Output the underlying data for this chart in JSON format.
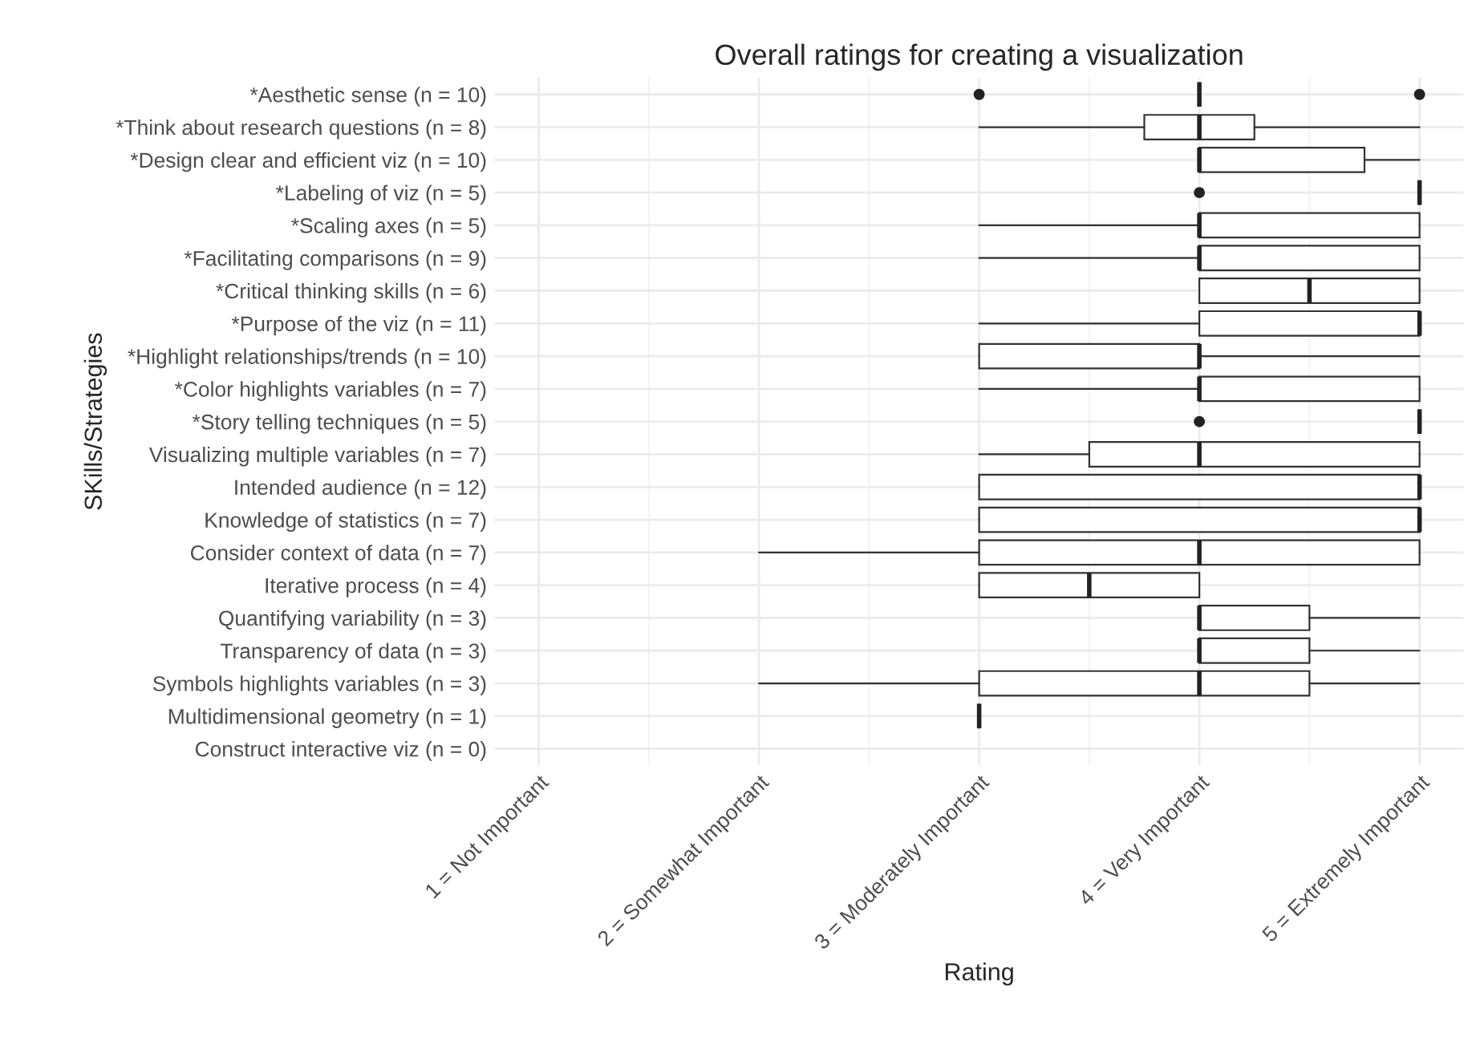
{
  "chart_data": {
    "type": "box",
    "title": "Overall ratings for creating a visualization",
    "xlabel": "Rating",
    "ylabel": "SKills/Strategies",
    "orientation": "horizontal",
    "categories": [
      "*Aesthetic sense (n = 10)",
      "*Think about research questions (n = 8)",
      "*Design clear and efficient viz (n = 10)",
      "*Labeling of viz (n = 5)",
      "*Scaling axes (n = 5)",
      "*Facilitating comparisons (n = 9)",
      "*Critical thinking skills (n = 6)",
      "*Purpose of the viz (n = 11)",
      "*Highlight relationships/trends (n = 10)",
      "*Color highlights variables (n = 7)",
      "*Story telling techniques (n = 5)",
      "Visualizing multiple variables (n = 7)",
      "Intended audience (n = 12)",
      "Knowledge of statistics (n = 7)",
      "Consider context of data (n = 7)",
      "Iterative process (n = 4)",
      "Quantifying variability (n = 3)",
      "Transparency of data (n = 3)",
      "Symbols highlights variables (n = 3)",
      "Multidimensional geometry (n = 1)",
      "Construct interactive viz (n = 0)"
    ],
    "boxes": [
      {
        "low": 4,
        "q1": 4,
        "median": 4,
        "q3": 4,
        "high": 4,
        "outliers": [
          3,
          5
        ]
      },
      {
        "low": 3,
        "q1": 3.75,
        "median": 4,
        "q3": 4.25,
        "high": 5
      },
      {
        "low": 4,
        "q1": 4,
        "median": 4,
        "q3": 4.75,
        "high": 5
      },
      {
        "low": 5,
        "q1": 5,
        "median": 5,
        "q3": 5,
        "high": 5,
        "outliers": [
          4
        ]
      },
      {
        "low": 3,
        "q1": 4,
        "median": 4,
        "q3": 5,
        "high": 5
      },
      {
        "low": 3,
        "q1": 4,
        "median": 4,
        "q3": 5,
        "high": 5
      },
      {
        "low": 4,
        "q1": 4,
        "median": 4.5,
        "q3": 5,
        "high": 5
      },
      {
        "low": 3,
        "q1": 4,
        "median": 5,
        "q3": 5,
        "high": 5
      },
      {
        "low": 3,
        "q1": 3,
        "median": 4,
        "q3": 4,
        "high": 5
      },
      {
        "low": 3,
        "q1": 4,
        "median": 4,
        "q3": 5,
        "high": 5
      },
      {
        "low": 5,
        "q1": 5,
        "median": 5,
        "q3": 5,
        "high": 5,
        "outliers": [
          4
        ]
      },
      {
        "low": 3,
        "q1": 3.5,
        "median": 4,
        "q3": 5,
        "high": 5
      },
      {
        "low": 3,
        "q1": 3,
        "median": 5,
        "q3": 5,
        "high": 5
      },
      {
        "low": 3,
        "q1": 3,
        "median": 5,
        "q3": 5,
        "high": 5
      },
      {
        "low": 2,
        "q1": 3,
        "median": 4,
        "q3": 5,
        "high": 5
      },
      {
        "low": 3,
        "q1": 3,
        "median": 3.5,
        "q3": 4,
        "high": 4
      },
      {
        "low": 4,
        "q1": 4,
        "median": 4,
        "q3": 4.5,
        "high": 5
      },
      {
        "low": 4,
        "q1": 4,
        "median": 4,
        "q3": 4.5,
        "high": 5
      },
      {
        "low": 2,
        "q1": 3,
        "median": 4,
        "q3": 4.5,
        "high": 5
      },
      {
        "low": 3,
        "q1": 3,
        "median": 3,
        "q3": 3,
        "high": 3
      },
      null
    ],
    "xlim": [
      0.8,
      5.2
    ],
    "xticks": [
      {
        "value": 1,
        "label": "1 = Not Important"
      },
      {
        "value": 2,
        "label": "2 = Somewhat Important"
      },
      {
        "value": 3,
        "label": "3 = Moderately Important"
      },
      {
        "value": 4,
        "label": "4 = Very Important"
      },
      {
        "value": 5,
        "label": "5 = Extremely Important"
      }
    ],
    "grid": true
  }
}
